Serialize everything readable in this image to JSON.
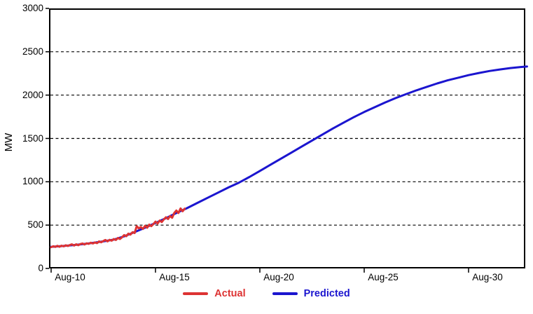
{
  "chart_data": {
    "type": "line",
    "title": "",
    "ylabel": "MW",
    "xlabel": "",
    "ylim": [
      0,
      3000
    ],
    "grid": "horizontal dashed black lines at each y tick (500 spacing)",
    "legend_position": "bottom-center",
    "y_ticks": [
      0,
      500,
      1000,
      1500,
      2000,
      2500,
      3000
    ],
    "x_axis": {
      "tick_labels": [
        "Aug-10",
        "Aug-15",
        "Aug-20",
        "Aug-25",
        "Aug-30"
      ],
      "tick_days": [
        0,
        5,
        10,
        15,
        20
      ],
      "days_span": [
        0,
        22.8
      ]
    },
    "series": [
      {
        "name": "Actual",
        "color": "#dd3333",
        "line_width": 3,
        "x_days": [
          0,
          0.1,
          0.2,
          0.3,
          0.4,
          0.5,
          0.6,
          0.7,
          0.8,
          0.9,
          1,
          1.1,
          1.2,
          1.3,
          1.4,
          1.5,
          1.6,
          1.7,
          1.8,
          1.9,
          2,
          2.1,
          2.2,
          2.3,
          2.4,
          2.5,
          2.6,
          2.7,
          2.8,
          2.9,
          3,
          3.1,
          3.2,
          3.3,
          3.4,
          3.5,
          3.6,
          3.7,
          3.8,
          3.9,
          4,
          4.1,
          4.2,
          4.3,
          4.4,
          4.5,
          4.6,
          4.7,
          4.8,
          4.9,
          5,
          5.1,
          5.2,
          5.3,
          5.4,
          5.5,
          5.6,
          5.7,
          5.8,
          5.9,
          6,
          6.1,
          6.2,
          6.3,
          6.4
        ],
        "values": [
          245,
          256,
          248,
          261,
          250,
          263,
          255,
          268,
          259,
          270,
          278,
          264,
          279,
          268,
          281,
          288,
          276,
          290,
          283,
          297,
          288,
          300,
          292,
          312,
          302,
          316,
          328,
          312,
          330,
          320,
          340,
          328,
          352,
          340,
          360,
          385,
          372,
          402,
          390,
          418,
          408,
          488,
          462,
          478,
          455,
          492,
          470,
          505,
          488,
          512,
          540,
          518,
          552,
          535,
          565,
          590,
          570,
          605,
          585,
          640,
          668,
          640,
          692,
          660,
          690
        ]
      },
      {
        "name": "Predicted",
        "color": "#1b15cf",
        "line_width": 3,
        "x_days": [
          0,
          0.5,
          1,
          1.5,
          2,
          2.5,
          3,
          3.5,
          4,
          4.5,
          5,
          5.5,
          6,
          6.5,
          7,
          7.5,
          8,
          8.5,
          9,
          9.5,
          10,
          10.5,
          11,
          11.5,
          12,
          12.5,
          13,
          13.5,
          14,
          14.5,
          15,
          15.5,
          16,
          16.5,
          17,
          17.5,
          18,
          18.5,
          19,
          19.5,
          20,
          20.5,
          21,
          21.5,
          22,
          22.5,
          22.8
        ],
        "values": [
          250,
          258,
          268,
          280,
          295,
          312,
          332,
          370,
          420,
          470,
          525,
          580,
          640,
          695,
          755,
          815,
          875,
          935,
          990,
          1055,
          1125,
          1195,
          1265,
          1335,
          1405,
          1475,
          1545,
          1615,
          1680,
          1745,
          1805,
          1860,
          1915,
          1965,
          2010,
          2055,
          2095,
          2135,
          2170,
          2200,
          2230,
          2255,
          2278,
          2296,
          2312,
          2324,
          2330
        ]
      }
    ],
    "axis_color": "#000000",
    "gridline_color": "#000000"
  }
}
